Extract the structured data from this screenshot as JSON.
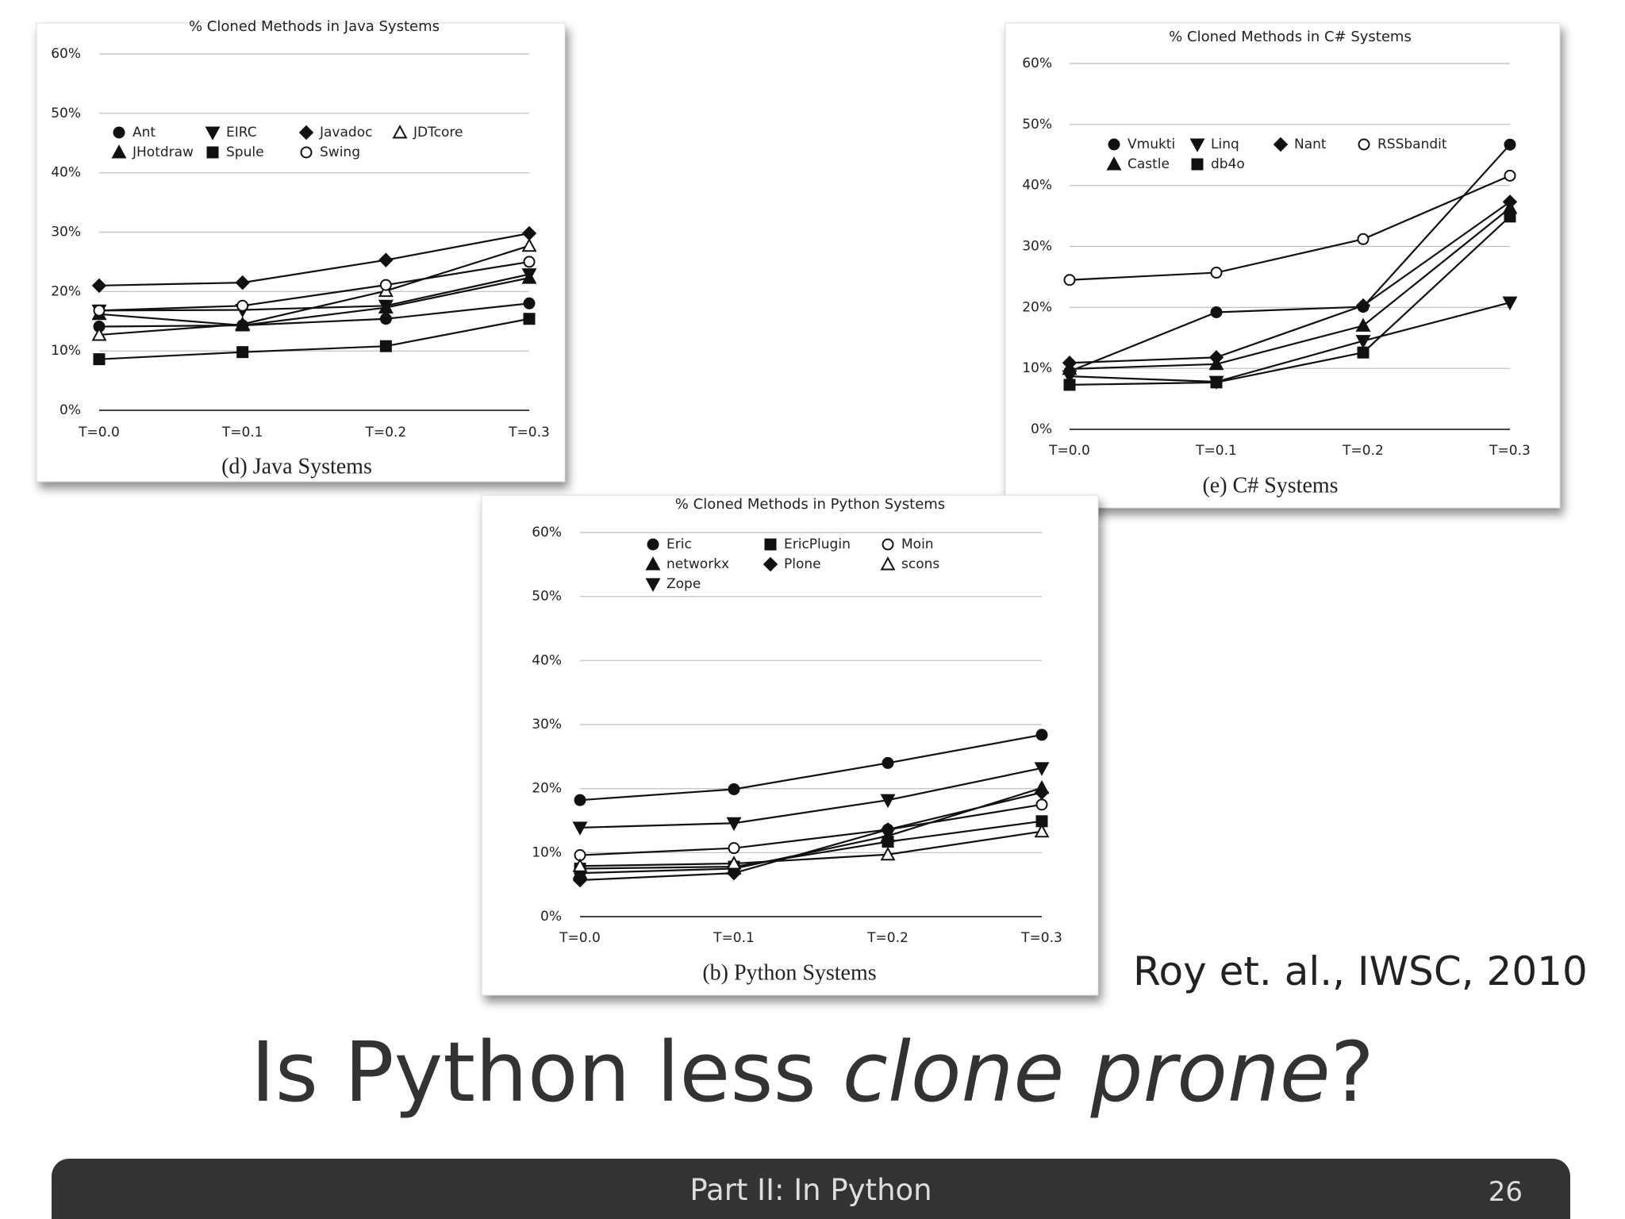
{
  "chart_data": [
    {
      "type": "line",
      "title": "% Cloned Methods in Java Systems",
      "caption": "(d) Java Systems",
      "categories": [
        "T=0.0",
        "T=0.1",
        "T=0.2",
        "T=0.3"
      ],
      "ylim": [
        0,
        60
      ],
      "yticks": [
        {
          "value": 0,
          "label": "0%"
        },
        {
          "value": 10,
          "label": "10%"
        },
        {
          "value": 20,
          "label": "20%"
        },
        {
          "value": 30,
          "label": "30%"
        },
        {
          "value": 40,
          "label": "40%"
        },
        {
          "value": 50,
          "label": "50%"
        },
        {
          "value": 60,
          "label": "60%"
        }
      ],
      "grid": true,
      "series": [
        {
          "name": "Ant",
          "color": "#111",
          "marker": "circle",
          "values": [
            14.1,
            14.3,
            15.4,
            18.0
          ]
        },
        {
          "name": "EIRC",
          "color": "#111",
          "marker": "triangle-down",
          "values": [
            16.8,
            16.9,
            17.6,
            22.9
          ]
        },
        {
          "name": "Javadoc",
          "color": "#111",
          "marker": "diamond",
          "values": [
            21.0,
            21.5,
            25.3,
            29.8
          ]
        },
        {
          "name": "JDTcore",
          "color": "#111",
          "marker": "triangle-open",
          "values": [
            12.7,
            14.5,
            20.1,
            27.7
          ]
        },
        {
          "name": "JHotdraw",
          "color": "#111",
          "marker": "triangle",
          "values": [
            16.2,
            14.3,
            17.3,
            22.3
          ]
        },
        {
          "name": "Spule",
          "color": "#111",
          "marker": "square",
          "values": [
            8.6,
            9.8,
            10.8,
            15.4
          ]
        },
        {
          "name": "Swing",
          "color": "#111",
          "marker": "circle-open",
          "values": [
            16.8,
            17.6,
            21.1,
            25.0
          ]
        }
      ]
    },
    {
      "type": "line",
      "title": "% Cloned Methods in C# Systems",
      "caption": "(e) C# Systems",
      "categories": [
        "T=0.0",
        "T=0.1",
        "T=0.2",
        "T=0.3"
      ],
      "ylim": [
        0,
        60
      ],
      "yticks": [
        {
          "value": 0,
          "label": "0%"
        },
        {
          "value": 10,
          "label": "10%"
        },
        {
          "value": 20,
          "label": "20%"
        },
        {
          "value": 30,
          "label": "30%"
        },
        {
          "value": 40,
          "label": "40%"
        },
        {
          "value": 50,
          "label": "50%"
        },
        {
          "value": 60,
          "label": "60%"
        }
      ],
      "grid": true,
      "series": [
        {
          "name": "Vmukti",
          "color": "#111",
          "marker": "circle",
          "values": [
            9.5,
            19.2,
            20.1,
            46.7
          ]
        },
        {
          "name": "Linq",
          "color": "#111",
          "marker": "triangle-down",
          "values": [
            8.7,
            7.8,
            14.5,
            20.8
          ]
        },
        {
          "name": "Nant",
          "color": "#111",
          "marker": "diamond",
          "values": [
            10.9,
            11.8,
            20.3,
            37.3
          ]
        },
        {
          "name": "RSSbandit",
          "color": "#111",
          "marker": "circle-open",
          "values": [
            24.5,
            25.7,
            31.2,
            41.6
          ]
        },
        {
          "name": "Castle",
          "color": "#111",
          "marker": "triangle",
          "values": [
            9.9,
            10.7,
            17.0,
            36.3
          ]
        },
        {
          "name": "db4o",
          "color": "#111",
          "marker": "square",
          "values": [
            7.3,
            7.7,
            12.6,
            34.9
          ]
        }
      ]
    },
    {
      "type": "line",
      "title": "% Cloned Methods in Python Systems",
      "caption": "(b) Python Systems",
      "categories": [
        "T=0.0",
        "T=0.1",
        "T=0.2",
        "T=0.3"
      ],
      "ylim": [
        0,
        60
      ],
      "yticks": [
        {
          "value": 0,
          "label": "0%"
        },
        {
          "value": 10,
          "label": "10%"
        },
        {
          "value": 20,
          "label": "20%"
        },
        {
          "value": 30,
          "label": "30%"
        },
        {
          "value": 40,
          "label": "40%"
        },
        {
          "value": 50,
          "label": "50%"
        },
        {
          "value": 60,
          "label": "60%"
        }
      ],
      "grid": true,
      "series": [
        {
          "name": "Eric",
          "color": "#111",
          "marker": "circle",
          "values": [
            18.2,
            19.9,
            24.0,
            28.4
          ]
        },
        {
          "name": "EricPlugin",
          "color": "#111",
          "marker": "square",
          "values": [
            7.5,
            7.8,
            11.7,
            14.9
          ]
        },
        {
          "name": "Moin",
          "color": "#111",
          "marker": "circle-open",
          "values": [
            9.6,
            10.7,
            13.6,
            17.5
          ]
        },
        {
          "name": "networkx",
          "color": "#111",
          "marker": "triangle",
          "values": [
            6.8,
            7.5,
            12.6,
            20.1
          ]
        },
        {
          "name": "Plone",
          "color": "#111",
          "marker": "diamond",
          "values": [
            5.7,
            6.8,
            13.6,
            19.4
          ]
        },
        {
          "name": "scons",
          "color": "#111",
          "marker": "triangle-open",
          "values": [
            7.9,
            8.3,
            9.7,
            13.3
          ]
        },
        {
          "name": "Zope",
          "color": "#111",
          "marker": "triangle-down",
          "values": [
            13.9,
            14.6,
            18.2,
            23.2
          ]
        }
      ]
    }
  ],
  "slide": {
    "title_start": "Is Python less ",
    "title_italic": "clone prone",
    "title_end": "?",
    "citation": "Roy et. al., IWSC, 2010",
    "footer": "Part II: In Python",
    "page_number": 26
  }
}
